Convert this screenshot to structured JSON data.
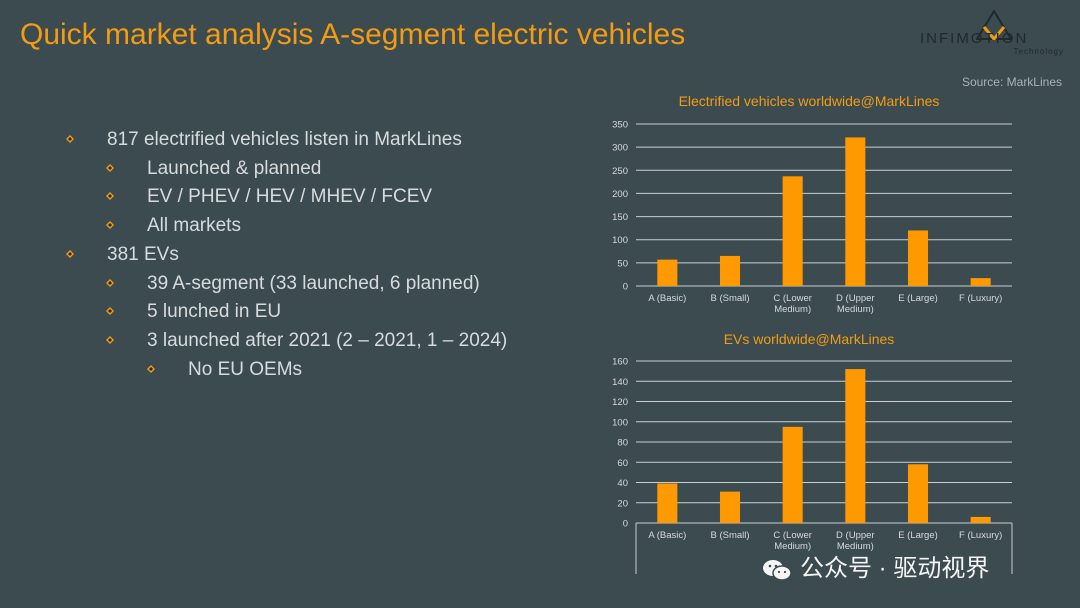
{
  "slide": {
    "title": "Quick market analysis A-segment electric vehicles",
    "source": "Source: MarkLines"
  },
  "logo": {
    "text": "INFIMOTION",
    "subtext": "Technology"
  },
  "bullets": [
    {
      "level": 1,
      "text": "817 electrified vehicles listen in MarkLines"
    },
    {
      "level": 2,
      "text": "Launched & planned"
    },
    {
      "level": 2,
      "text": "EV / PHEV / HEV / MHEV / FCEV"
    },
    {
      "level": 2,
      "text": "All markets"
    },
    {
      "level": 1,
      "text": "381 EVs"
    },
    {
      "level": 2,
      "text": "39 A-segment (33 launched, 6 planned)"
    },
    {
      "level": 2,
      "text": "5 lunched in EU"
    },
    {
      "level": 2,
      "text": "3 launched after 2021 (2 – 2021, 1 – 2024)"
    },
    {
      "level": 3,
      "text": "No EU OEMs"
    }
  ],
  "colors": {
    "bar": "#ff9900",
    "title": "#f39c12",
    "background": "#3b4b50"
  },
  "chart_data": [
    {
      "type": "bar",
      "title": "Electrified vehicles worldwide@MarkLines",
      "categories": [
        [
          "A (Basic)"
        ],
        [
          "B (Small)"
        ],
        [
          "C (Lower",
          "Medium)"
        ],
        [
          "D (Upper",
          "Medium)"
        ],
        [
          "E (Large)"
        ],
        [
          "F (Luxury)"
        ]
      ],
      "values": [
        57,
        65,
        237,
        321,
        120,
        17
      ],
      "ylim": [
        0,
        350
      ],
      "yticks": [
        0,
        50,
        100,
        150,
        200,
        250,
        300,
        350
      ],
      "grid": true
    },
    {
      "type": "bar",
      "title": "EVs worldwide@MarkLines",
      "categories": [
        [
          "A (Basic)"
        ],
        [
          "B (Small)"
        ],
        [
          "C (Lower",
          "Medium)"
        ],
        [
          "D (Upper",
          "Medium)"
        ],
        [
          "E (Large)"
        ],
        [
          "F (Luxury)"
        ]
      ],
      "values": [
        39,
        31,
        95,
        152,
        58,
        6
      ],
      "ylim": [
        0,
        160
      ],
      "yticks": [
        0,
        20,
        40,
        60,
        80,
        100,
        120,
        140,
        160
      ],
      "grid": true
    }
  ],
  "watermark": {
    "text": "公众号 · 驱动视界"
  }
}
